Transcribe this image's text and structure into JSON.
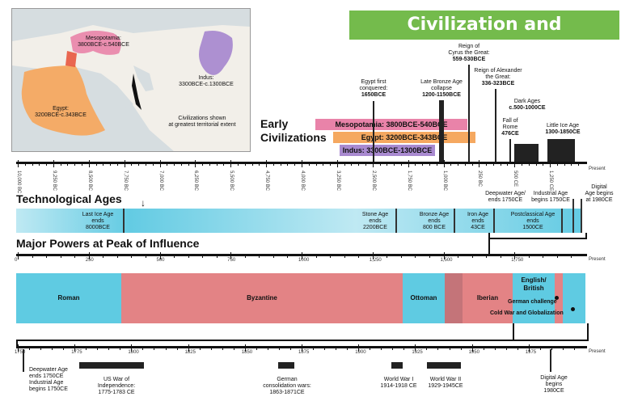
{
  "title": "Civilization and Technology",
  "map": {
    "mesopotamia": "Mesopotamia:",
    "mesopotamia_dates": "3800BCE-c.540BCE",
    "indus": "Indus:",
    "indus_dates": "3300BCE-c.1300BCE",
    "egypt": "Egypt:",
    "egypt_dates": "3200BCE-c.343BCE",
    "note_line1": "Civilizations shown",
    "note_line2": "at greatest territorial extent"
  },
  "early_civilizations": {
    "heading_line1": "Early",
    "heading_line2": "Civilizations",
    "pills": [
      {
        "label": "Mesopotamia: 3800BCE-540BCE",
        "color": "#e983a9"
      },
      {
        "label": "Egypt: 3200BCE-343BCE",
        "color": "#f5a860"
      },
      {
        "label": "Indus: 3300BCE-1300BCE",
        "color": "#a98ad0"
      }
    ],
    "events": [
      {
        "line1": "Egypt first",
        "line2": "conquered:",
        "line3": "1650BCE"
      },
      {
        "line1": "Late Bronze Age",
        "line2": "collapse",
        "line3": "1200-1150BCE"
      },
      {
        "line1": "Reign of",
        "line2": "Cyrus the Great:",
        "line3": "559-530BCE"
      },
      {
        "line1": "Reign of Alexander",
        "line2": "the Great:",
        "line3": "336-323BCE"
      },
      {
        "line1": "Fall of",
        "line2": "Rome",
        "line3": "476CE"
      },
      {
        "line1": "Dark Ages",
        "line2": "c.500-1000CE",
        "line3": ""
      },
      {
        "line1": "Little Ice Age",
        "line2": "1300-1850CE",
        "line3": ""
      }
    ]
  },
  "top_axis": {
    "ticks": [
      "10,000 BC",
      "9,250 BC",
      "8,500 BC",
      "7,750 BC",
      "7,000 BC",
      "6,250 BC",
      "5,500 BC",
      "4,750 BC",
      "4,000 BC",
      "3,250 BC",
      "2,500 BC",
      "1,750 BC",
      "1,000 BC",
      "250 BC",
      "500 CE",
      "1,250 CE"
    ],
    "end_label": "Present"
  },
  "technological_ages": {
    "heading": "Technological Ages",
    "segments": [
      {
        "line1": "Last Ice Age",
        "line2": "ends",
        "line3": "8000BCE"
      },
      {
        "line1": "Stone Age",
        "line2": "ends",
        "line3": "2200BCE"
      },
      {
        "line1": "Bronze Age",
        "line2": "ends",
        "line3": "800 BCE"
      },
      {
        "line1": "Iron Age",
        "line2": "ends",
        "line3": "43CE"
      },
      {
        "line1": "Postclassical Age",
        "line2": "ends",
        "line3": "1500CE"
      }
    ],
    "deepwater": {
      "line1": "Deepwater Age/",
      "line2": "ends 1750CE"
    },
    "industrial": {
      "line1": "Industrial Age",
      "line2": "begins 1750CE"
    },
    "digital": {
      "line1": "Digital",
      "line2": "Age begins",
      "line3": "at 1980CE"
    }
  },
  "major_powers": {
    "heading": "Major Powers at Peak of Influence",
    "ticks": [
      "0",
      "250",
      "500",
      "750",
      "1000",
      "1,250",
      "1,500",
      "1,750"
    ],
    "end_label": "Present",
    "powers": [
      {
        "label": "Roman",
        "color": "#5fcbe2"
      },
      {
        "label": "Byzantine",
        "color": "#e38385"
      },
      {
        "label": "Ottoman",
        "color": "#5fcbe2"
      },
      {
        "label": "Iberian",
        "color": "#e38385"
      },
      {
        "label": "English/\nBritish",
        "color": "#5fcbe2"
      }
    ],
    "german_challenge": "German challenge",
    "cold_war": "Cold War and Globalization"
  },
  "bottom_axis": {
    "ticks": [
      "1750",
      "1775",
      "1800",
      "1825",
      "1850",
      "1875",
      "1900",
      "1925",
      "1950",
      "1975"
    ],
    "end_label": "Present",
    "events": [
      {
        "line1": "Deepwater Age",
        "line2": "ends 1750CE",
        "line3": "Industrial Age",
        "line4": "begins 1750CE"
      },
      {
        "line1": "US War of",
        "line2": "Independence:",
        "line3": "1775-1783 CE"
      },
      {
        "line1": "German",
        "line2": "consolidation wars:",
        "line3": "1863-1871CE"
      },
      {
        "line1": "World War I",
        "line2": "1914-1918 CE"
      },
      {
        "line1": "World War II",
        "line2": "1929-1945CE"
      },
      {
        "line1": "Digital Age",
        "line2": "begins",
        "line3": "1980CE"
      }
    ]
  }
}
